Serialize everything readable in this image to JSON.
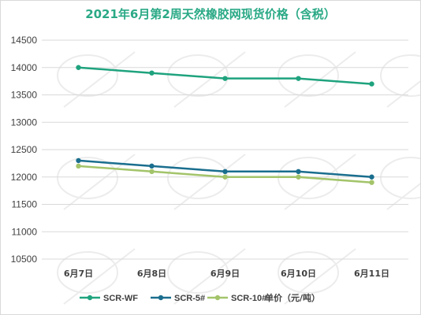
{
  "chart_data": {
    "type": "line",
    "title": "2021年6月第2周天然橡胶网现货价格（含税）",
    "categories": [
      "6月7日",
      "6月8日",
      "6月9日",
      "6月10日",
      "6月11日"
    ],
    "series": [
      {
        "name": "SCR-WF",
        "values": [
          14000,
          13900,
          13800,
          13800,
          13700
        ],
        "color": "#1fa37e"
      },
      {
        "name": "SCR-5#",
        "values": [
          12300,
          12200,
          12100,
          12100,
          12000
        ],
        "color": "#1a6e8e"
      },
      {
        "name": "SCR-10#",
        "values": [
          12200,
          12100,
          12000,
          12000,
          11900
        ],
        "color": "#a3c46a"
      }
    ],
    "yticks": [
      14500,
      14000,
      13500,
      13000,
      12500,
      12000,
      11500,
      11000,
      10500
    ],
    "ylim": [
      10500,
      14500
    ],
    "unit_label": "单价（元/吨）",
    "grid": true,
    "legend_position": "bottom"
  }
}
